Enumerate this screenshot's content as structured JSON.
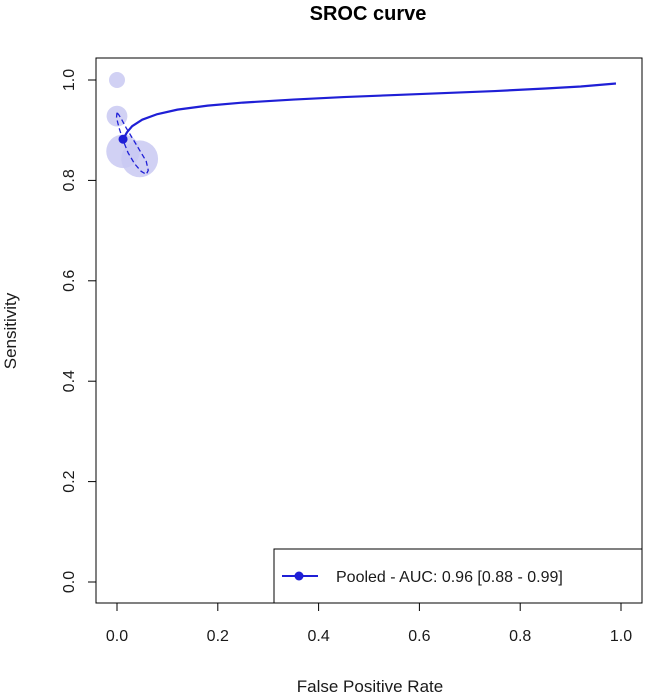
{
  "chart_data": {
    "type": "scatter",
    "title": "SROC curve",
    "xlabel": "False Positive Rate",
    "ylabel": "Sensitivity",
    "xlim": [
      0,
      1
    ],
    "ylim": [
      0,
      1
    ],
    "xticks": [
      "0.0",
      "0.2",
      "0.4",
      "0.6",
      "0.8",
      "1.0"
    ],
    "yticks": [
      "0.0",
      "0.2",
      "0.4",
      "0.6",
      "0.8",
      "1.0"
    ],
    "grid": false,
    "colors": {
      "curve": "#1f1fd6",
      "study": "#c9c9f2"
    },
    "studies": [
      {
        "x": 0.0,
        "y": 1.0,
        "weight": 1.0
      },
      {
        "x": 0.0,
        "y": 0.928,
        "weight": 1.3
      },
      {
        "x": 0.012,
        "y": 0.858,
        "weight": 2.1
      },
      {
        "x": 0.045,
        "y": 0.843,
        "weight": 2.3
      }
    ],
    "pooled_point": {
      "x": 0.012,
      "y": 0.882
    },
    "sroc_curve": {
      "x": [
        0.012,
        0.02,
        0.03,
        0.05,
        0.08,
        0.12,
        0.18,
        0.25,
        0.35,
        0.45,
        0.55,
        0.65,
        0.75,
        0.85,
        0.92,
        0.99
      ],
      "y": [
        0.882,
        0.896,
        0.908,
        0.921,
        0.932,
        0.941,
        0.949,
        0.955,
        0.961,
        0.966,
        0.97,
        0.974,
        0.978,
        0.983,
        0.987,
        0.993
      ]
    },
    "confidence_region": {
      "x": [
        0.0,
        -0.001,
        0.004,
        0.012,
        0.022,
        0.035,
        0.048,
        0.058,
        0.062,
        0.058,
        0.045,
        0.03,
        0.018,
        0.01,
        0.004,
        0.0
      ],
      "y": [
        0.935,
        0.925,
        0.905,
        0.88,
        0.855,
        0.833,
        0.818,
        0.812,
        0.82,
        0.838,
        0.86,
        0.885,
        0.905,
        0.92,
        0.93,
        0.935
      ]
    },
    "legend": {
      "position": "bottom-right",
      "entries": [
        "Pooled - AUC: 0.96 [0.88 - 0.99]"
      ]
    }
  }
}
